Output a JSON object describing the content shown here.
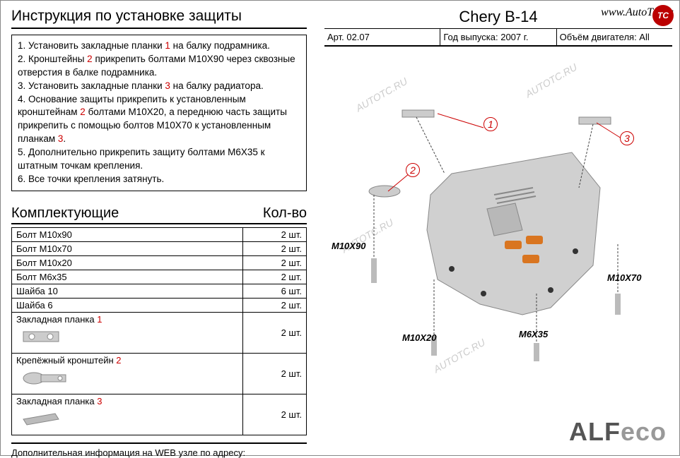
{
  "title": "Инструкция по установке защиты",
  "instructions": [
    {
      "n": "1.",
      "text": "Установить закладные планки ",
      "red": "1",
      "tail": " на балку подрамника."
    },
    {
      "n": "2.",
      "text": "Кронштейны ",
      "red": "2",
      "tail": " прикрепить болтами М10Х90 через сквозные отверстия в балке подрамника."
    },
    {
      "n": "3.",
      "text": "Установить закладные планки ",
      "red": "3",
      "tail": " на балку радиатора."
    },
    {
      "n": "4.",
      "text": "Основание защиты прикрепить к установленным кронштейнам ",
      "red": "2",
      "tail": " болтами М10Х20, а переднюю часть защиты прикрепить с помощью болтов М10Х70 к установленным планкам ",
      "red2": "3",
      "tail2": "."
    },
    {
      "n": "5.",
      "text": "Дополнительно прикрепить защиту болтами М6Х35 к штатным точкам крепления.",
      "red": "",
      "tail": ""
    },
    {
      "n": "6.",
      "text": "Все точки крепления затянуть.",
      "red": "",
      "tail": ""
    }
  ],
  "parts_header": {
    "left": "Комплектующие",
    "right": "Кол-во"
  },
  "parts": [
    {
      "name": "Болт М10х90",
      "qty": "2 шт."
    },
    {
      "name": "Болт М10х70",
      "qty": "2 шт."
    },
    {
      "name": "Болт М10х20",
      "qty": "2 шт."
    },
    {
      "name": "Болт М6х35",
      "qty": "2 шт."
    },
    {
      "name": "Шайба 10",
      "qty": "6 шт."
    },
    {
      "name": "Шайба 6",
      "qty": "2 шт."
    }
  ],
  "img_parts": [
    {
      "name": "Закладная планка ",
      "red": "1",
      "qty": "2 шт."
    },
    {
      "name": "Крепёжный кронштейн ",
      "red": "2",
      "qty": "2 шт."
    },
    {
      "name": "Закладная планка ",
      "red": "3",
      "qty": "2 шт."
    }
  ],
  "footer": "Дополнительная информация на WEB узле по адресу:",
  "model": "Chery  B-14",
  "spec_art": "Арт. 02.07",
  "spec_year": "Год выпуска: 2007 г.",
  "spec_engine": "Объём двигателя: All",
  "website": "www.AutoTC.ru",
  "logo": "TC",
  "brand1": "ALF",
  "brand2": "eco",
  "callouts": {
    "c1": "1",
    "c2": "2",
    "c3": "3"
  },
  "bolts": {
    "b1": "M10X90",
    "b2": "M10X20",
    "b3": "M6X35",
    "b4": "M10X70"
  },
  "watermark": "AUTOTC.RU",
  "colors": {
    "red": "#c00",
    "plate": "#d0d0d0",
    "plate_dark": "#a0a0a0",
    "orange": "#d97520",
    "brand": "#555",
    "brand_light": "#999"
  }
}
